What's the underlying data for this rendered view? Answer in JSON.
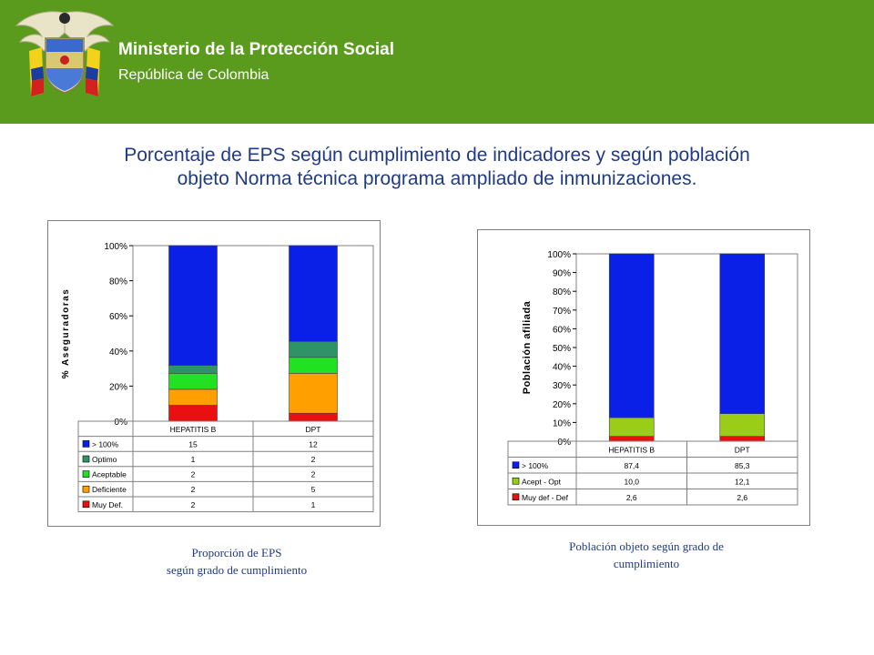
{
  "header": {
    "org_name": "Ministerio de la Protección Social",
    "org_sub": "República de Colombia",
    "logo_text": "Libertad y Orden",
    "bg_color": "#5a9a1c"
  },
  "slide": {
    "title_line1": "Porcentaje de EPS según cumplimiento de indicadores y según población",
    "title_line2": "objeto Norma técnica programa ampliado de inmunizaciones."
  },
  "captions": {
    "left_line1": "Proporción de EPS",
    "left_line2": "según grado de cumplimiento",
    "right_line1": "Población objeto según grado de",
    "right_line2": "cumplimiento"
  },
  "chart_data": [
    {
      "type": "bar",
      "stacked": "percent",
      "ylabel": "% Aseguradoras",
      "ylim": [
        0,
        100
      ],
      "yticks": [
        "0%",
        "20%",
        "40%",
        "60%",
        "80%",
        "100%"
      ],
      "categories": [
        "HEPATITIS B",
        "DPT"
      ],
      "series": [
        {
          "name": "Muy Def.",
          "color": "#e81010",
          "values": [
            2,
            1
          ],
          "labels": [
            "2",
            "1"
          ]
        },
        {
          "name": "Deficiente",
          "color": "#ffa000",
          "values": [
            2,
            5
          ],
          "labels": [
            "2",
            "5"
          ]
        },
        {
          "name": "Aceptable",
          "color": "#22e022",
          "values": [
            2,
            2
          ],
          "labels": [
            "2",
            "2"
          ]
        },
        {
          "name": "Optimo",
          "color": "#2e9467",
          "values": [
            1,
            2
          ],
          "labels": [
            "1",
            "2"
          ]
        },
        {
          "name": "> 100%",
          "color": "#0a20e6",
          "values": [
            15,
            12
          ],
          "labels": [
            "15",
            "12"
          ]
        }
      ],
      "legend": "table-below",
      "grid": false
    },
    {
      "type": "bar",
      "stacked": "percent",
      "ylabel": "Población afiliada",
      "ylim": [
        0,
        100
      ],
      "yticks": [
        "0%",
        "10%",
        "20%",
        "30%",
        "40%",
        "50%",
        "60%",
        "70%",
        "80%",
        "90%",
        "100%"
      ],
      "categories": [
        "HEPATITIS B",
        "DPT"
      ],
      "series": [
        {
          "name": "Muy def - Def",
          "color": "#e81010",
          "values": [
            2.6,
            2.6
          ],
          "labels": [
            "2,6",
            "2,6"
          ]
        },
        {
          "name": "Acept - Opt",
          "color": "#9acd18",
          "values": [
            10.0,
            12.1
          ],
          "labels": [
            "10,0",
            "12,1"
          ]
        },
        {
          "name": "> 100%",
          "color": "#0a20e6",
          "values": [
            87.4,
            85.3
          ],
          "labels": [
            "87,4",
            "85,3"
          ]
        }
      ],
      "legend": "table-below",
      "grid": false
    }
  ]
}
